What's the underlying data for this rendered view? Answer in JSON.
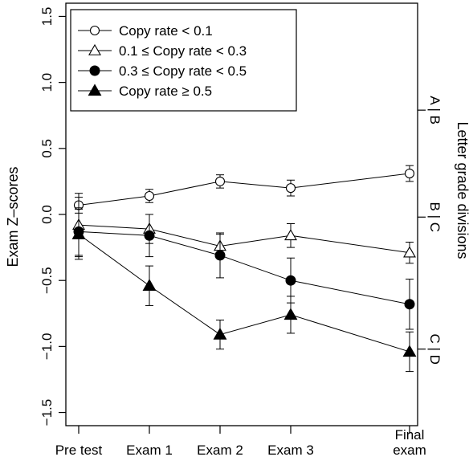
{
  "chart_data": {
    "type": "line",
    "ylabel": "Exam Z–scores",
    "ylabel_right": "Letter grade divisions",
    "categories": [
      "Pre test",
      "Exam 1",
      "Exam 2",
      "Exam 3",
      "Final exam"
    ],
    "category_labels": [
      [
        "Pre test"
      ],
      [
        "Exam 1"
      ],
      [
        "Exam 2"
      ],
      [
        "Exam 3"
      ],
      [
        "Final",
        "exam"
      ]
    ],
    "ylim": [
      -1.6,
      1.6
    ],
    "yticks": [
      {
        "value": 1.5,
        "label": "1.5"
      },
      {
        "value": 1.0,
        "label": "1.0"
      },
      {
        "value": 0.5,
        "label": "0.5"
      },
      {
        "value": 0.0,
        "label": "0.0"
      },
      {
        "value": -0.5,
        "label": "−0.5"
      },
      {
        "value": -1.0,
        "label": "−1.0"
      },
      {
        "value": -1.5,
        "label": "−1.5"
      }
    ],
    "right_ticks": [
      {
        "value": 0.79,
        "label": "A | B"
      },
      {
        "value": -0.02,
        "label": "B | C"
      },
      {
        "value": -1.02,
        "label": "C | D"
      }
    ],
    "legend_position": "top-left",
    "grid": false,
    "series": [
      {
        "name": "Copy rate < 0.1",
        "marker": "open-circle",
        "values": [
          0.07,
          0.14,
          0.25,
          0.2,
          0.31
        ],
        "err": [
          0.06,
          0.05,
          0.05,
          0.06,
          0.06
        ]
      },
      {
        "name": "0.1 ≤ Copy rate < 0.3",
        "marker": "open-triangle",
        "values": [
          -0.08,
          -0.11,
          -0.24,
          -0.16,
          -0.29
        ],
        "err": [
          0.24,
          0.11,
          0.09,
          0.09,
          0.08
        ]
      },
      {
        "name": "0.3 ≤ Copy rate < 0.5",
        "marker": "filled-circle",
        "values": [
          -0.13,
          -0.16,
          -0.31,
          -0.5,
          -0.68
        ],
        "err": [
          0.18,
          0.16,
          0.17,
          0.17,
          0.19
        ]
      },
      {
        "name": "Copy rate ≥ 0.5",
        "marker": "filled-triangle",
        "values": [
          -0.15,
          -0.54,
          -0.91,
          -0.76,
          -1.04
        ],
        "err": [
          0.19,
          0.15,
          0.11,
          0.14,
          0.15
        ]
      }
    ]
  }
}
